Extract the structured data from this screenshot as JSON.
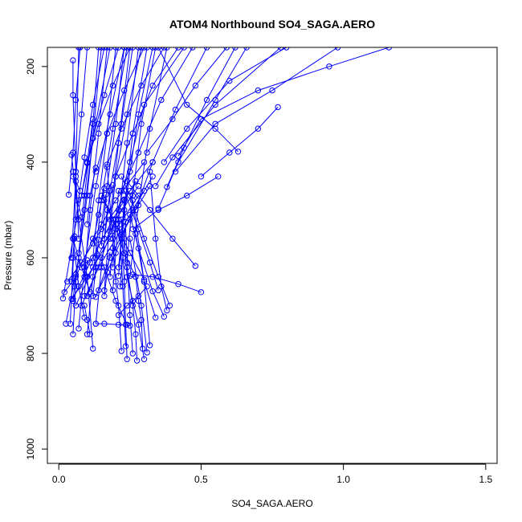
{
  "chart_data": {
    "type": "line",
    "title": "ATOM4 Northbound SO4_SAGA.AERO",
    "xlabel": "SO4_SAGA.AERO",
    "ylabel": "Pressure (mbar)",
    "xlim": [
      -0.04,
      1.54
    ],
    "ylim": [
      1030,
      160
    ],
    "y_inverted": true,
    "x_ticks": [
      {
        "value": 0.0,
        "label": "0.0"
      },
      {
        "value": 0.5,
        "label": "0.5"
      },
      {
        "value": 1.0,
        "label": "1.0"
      },
      {
        "value": 1.5,
        "label": "1.5"
      }
    ],
    "y_ticks": [
      {
        "value": 200,
        "label": "200"
      },
      {
        "value": 400,
        "label": "400"
      },
      {
        "value": 600,
        "label": "600"
      },
      {
        "value": 800,
        "label": "800"
      },
      {
        "value": 1000,
        "label": "1000"
      }
    ],
    "series_color": "#0000ff",
    "marker": "open-circle",
    "grid": false,
    "legend": "none",
    "series": [
      {
        "x": [
          0.05,
          0.05,
          0.06,
          0.07
        ],
        "y": [
          187,
          260,
          420,
          560
        ]
      },
      {
        "x": [
          0.44,
          0.3,
          0.25,
          0.2,
          0.15,
          0.1
        ],
        "y": [
          160,
          280,
          400,
          520,
          600,
          680
        ]
      },
      {
        "x": [
          0.015,
          0.05,
          0.08,
          0.1,
          0.12
        ],
        "y": [
          685,
          560,
          470,
          400,
          310
        ]
      },
      {
        "x": [
          0.025,
          0.07,
          0.1,
          0.15
        ],
        "y": [
          738,
          600,
          470,
          160
        ]
      },
      {
        "x": [
          0.12,
          0.1,
          0.07,
          0.045
        ],
        "y": [
          790,
          640,
          520,
          385
        ]
      },
      {
        "x": [
          0.22,
          0.21,
          0.2,
          0.19,
          0.17
        ],
        "y": [
          795,
          700,
          650,
          560,
          410
        ]
      },
      {
        "x": [
          0.3,
          0.28,
          0.26,
          0.24,
          0.23
        ],
        "y": [
          812,
          740,
          690,
          640,
          560
        ]
      },
      {
        "x": [
          0.24,
          0.235,
          0.23,
          0.22
        ],
        "y": [
          812,
          740,
          650,
          520
        ]
      },
      {
        "x": [
          0.275,
          0.27,
          0.26,
          0.24
        ],
        "y": [
          815,
          760,
          700,
          620
        ]
      },
      {
        "x": [
          0.295,
          0.29,
          0.28,
          0.27
        ],
        "y": [
          790,
          730,
          690,
          640
        ]
      },
      {
        "x": [
          0.32,
          0.3,
          0.27
        ],
        "y": [
          783,
          650,
          550
        ]
      },
      {
        "x": [
          0.31,
          0.29,
          0.25
        ],
        "y": [
          798,
          700,
          560
        ]
      },
      {
        "x": [
          0.26,
          0.25,
          0.23
        ],
        "y": [
          800,
          720,
          480
        ]
      },
      {
        "x": [
          0.235,
          0.225,
          0.21
        ],
        "y": [
          785,
          660,
          500
        ]
      },
      {
        "x": [
          0.38,
          0.36,
          0.34,
          0.32
        ],
        "y": [
          710,
          660,
          560,
          420
        ]
      },
      {
        "x": [
          0.39,
          0.35,
          0.3,
          0.25,
          0.22
        ],
        "y": [
          700,
          640,
          560,
          470,
          430
        ]
      },
      {
        "x": [
          0.37,
          0.33,
          0.28,
          0.25
        ],
        "y": [
          723,
          670,
          580,
          510
        ]
      },
      {
        "x": [
          0.34,
          0.3,
          0.26
        ],
        "y": [
          725,
          650,
          480
        ]
      },
      {
        "x": [
          0.35,
          0.32,
          0.28,
          0.23
        ],
        "y": [
          668,
          610,
          540,
          460
        ]
      },
      {
        "x": [
          0.5,
          0.42,
          0.33,
          0.26
        ],
        "y": [
          672,
          655,
          640,
          635
        ]
      },
      {
        "x": [
          0.48,
          0.4,
          0.32,
          0.24
        ],
        "y": [
          617,
          560,
          500,
          440
        ]
      },
      {
        "x": [
          0.56,
          0.45,
          0.35,
          0.26
        ],
        "y": [
          430,
          470,
          500,
          540
        ]
      },
      {
        "x": [
          0.63,
          0.55,
          0.45,
          0.35
        ],
        "y": [
          378,
          330,
          280,
          160
        ]
      },
      {
        "x": [
          0.77,
          0.7,
          0.6,
          0.5
        ],
        "y": [
          285,
          330,
          380,
          430
        ]
      },
      {
        "x": [
          0.42,
          0.5,
          0.7,
          0.95,
          1.16
        ],
        "y": [
          387,
          310,
          250,
          200,
          160
        ]
      },
      {
        "x": [
          0.41,
          0.55,
          0.75,
          0.98
        ],
        "y": [
          420,
          320,
          250,
          160
        ]
      },
      {
        "x": [
          0.37,
          0.45,
          0.6,
          0.8
        ],
        "y": [
          400,
          330,
          230,
          160
        ]
      },
      {
        "x": [
          0.34,
          0.4,
          0.55,
          0.78
        ],
        "y": [
          450,
          390,
          280,
          160
        ]
      },
      {
        "x": [
          0.35,
          0.42,
          0.55,
          0.66
        ],
        "y": [
          497,
          400,
          270,
          160
        ]
      },
      {
        "x": [
          0.38,
          0.44,
          0.52,
          0.62
        ],
        "y": [
          452,
          370,
          270,
          160
        ]
      },
      {
        "x": [
          0.31,
          0.4,
          0.48,
          0.59
        ],
        "y": [
          380,
          310,
          240,
          160
        ]
      },
      {
        "x": [
          0.27,
          0.33,
          0.41,
          0.52
        ],
        "y": [
          500,
          400,
          290,
          160
        ]
      },
      {
        "x": [
          0.22,
          0.28,
          0.36,
          0.47
        ],
        "y": [
          460,
          380,
          270,
          160
        ]
      },
      {
        "x": [
          0.2,
          0.26,
          0.33,
          0.42
        ],
        "y": [
          430,
          340,
          240,
          160
        ]
      },
      {
        "x": [
          0.17,
          0.22,
          0.29,
          0.37
        ],
        "y": [
          405,
          330,
          240,
          160
        ]
      },
      {
        "x": [
          0.13,
          0.17,
          0.23,
          0.3
        ],
        "y": [
          420,
          340,
          250,
          160
        ]
      },
      {
        "x": [
          0.1,
          0.14,
          0.19,
          0.25
        ],
        "y": [
          402,
          320,
          240,
          160
        ]
      },
      {
        "x": [
          0.08,
          0.12,
          0.16,
          0.21
        ],
        "y": [
          470,
          350,
          260,
          160
        ]
      },
      {
        "x": [
          0.06,
          0.09,
          0.12,
          0.16
        ],
        "y": [
          520,
          390,
          280,
          160
        ]
      },
      {
        "x": [
          0.045,
          0.06,
          0.08,
          0.1
        ],
        "y": [
          600,
          430,
          300,
          160
        ]
      },
      {
        "x": [
          0.035,
          0.05,
          0.06,
          0.075
        ],
        "y": [
          468,
          380,
          270,
          160
        ]
      },
      {
        "x": [
          0.04,
          0.055,
          0.07
        ],
        "y": [
          738,
          560,
          160
        ]
      },
      {
        "x": [
          0.05,
          0.06,
          0.09,
          0.12,
          0.18
        ],
        "y": [
          760,
          650,
          500,
          350,
          160
        ]
      },
      {
        "x": [
          0.07,
          0.09,
          0.13,
          0.18,
          0.23
        ],
        "y": [
          748,
          620,
          450,
          300,
          160
        ]
      },
      {
        "x": [
          0.1,
          0.12,
          0.15,
          0.19,
          0.24
        ],
        "y": [
          760,
          640,
          480,
          330,
          160
        ]
      },
      {
        "x": [
          0.13,
          0.15,
          0.18,
          0.22,
          0.26
        ],
        "y": [
          738,
          620,
          460,
          320,
          160
        ]
      },
      {
        "x": [
          0.16,
          0.18,
          0.21,
          0.25
        ],
        "y": [
          668,
          520,
          360,
          160
        ]
      },
      {
        "x": [
          0.19,
          0.21,
          0.24,
          0.28
        ],
        "y": [
          668,
          520,
          360,
          160
        ]
      },
      {
        "x": [
          0.21,
          0.23,
          0.26,
          0.31
        ],
        "y": [
          638,
          500,
          340,
          160
        ]
      },
      {
        "x": [
          0.24,
          0.26,
          0.29,
          0.34
        ],
        "y": [
          610,
          470,
          320,
          160
        ]
      },
      {
        "x": [
          0.25,
          0.28,
          0.32,
          0.38
        ],
        "y": [
          638,
          490,
          330,
          160
        ]
      },
      {
        "x": [
          0.22,
          0.25,
          0.28,
          0.33
        ],
        "y": [
          552,
          420,
          300,
          160
        ]
      },
      {
        "x": [
          0.18,
          0.2,
          0.24,
          0.29
        ],
        "y": [
          545,
          430,
          300,
          160
        ]
      },
      {
        "x": [
          0.15,
          0.17,
          0.2,
          0.23
        ],
        "y": [
          575,
          450,
          320,
          160
        ]
      },
      {
        "x": [
          0.12,
          0.14,
          0.17,
          0.2
        ],
        "y": [
          600,
          480,
          340,
          160
        ]
      },
      {
        "x": [
          0.09,
          0.11,
          0.14,
          0.17
        ],
        "y": [
          640,
          500,
          340,
          160
        ]
      },
      {
        "x": [
          0.07,
          0.09,
          0.12,
          0.14
        ],
        "y": [
          590,
          470,
          320,
          160
        ]
      },
      {
        "x": [
          0.02,
          0.06,
          0.12,
          0.2,
          0.3
        ],
        "y": [
          672,
          640,
          560,
          480,
          400
        ]
      },
      {
        "x": [
          0.03,
          0.08,
          0.15,
          0.25,
          0.33
        ],
        "y": [
          650,
          610,
          540,
          460,
          400
        ]
      },
      {
        "x": [
          0.045,
          0.1,
          0.18,
          0.28
        ],
        "y": [
          686,
          640,
          560,
          470
        ]
      },
      {
        "x": [
          0.05,
          0.11,
          0.19,
          0.27
        ],
        "y": [
          686,
          610,
          520,
          440
        ]
      },
      {
        "x": [
          0.06,
          0.12,
          0.2,
          0.28
        ],
        "y": [
          700,
          620,
          520,
          450
        ]
      },
      {
        "x": [
          0.08,
          0.14,
          0.22,
          0.3
        ],
        "y": [
          700,
          620,
          540,
          460
        ]
      },
      {
        "x": [
          0.13,
          0.18,
          0.25,
          0.32
        ],
        "y": [
          682,
          600,
          520,
          450
        ]
      },
      {
        "x": [
          0.14,
          0.2,
          0.26,
          0.33
        ],
        "y": [
          668,
          590,
          500,
          430
        ]
      },
      {
        "x": [
          0.27,
          0.23,
          0.19,
          0.15
        ],
        "y": [
          640,
          590,
          520,
          470
        ]
      },
      {
        "x": [
          0.3,
          0.25,
          0.2,
          0.16
        ],
        "y": [
          646,
          590,
          530,
          480
        ]
      },
      {
        "x": [
          0.24,
          0.2,
          0.16,
          0.12
        ],
        "y": [
          740,
          690,
          620,
          560
        ]
      },
      {
        "x": [
          0.13,
          0.16,
          0.21,
          0.25
        ],
        "y": [
          738,
          738,
          740,
          742
        ]
      },
      {
        "x": [
          0.21,
          0.24,
          0.28,
          0.31
        ],
        "y": [
          720,
          700,
          680,
          660
        ]
      },
      {
        "x": [
          0.11,
          0.08,
          0.05
        ],
        "y": [
          672,
          620,
          560
        ]
      },
      {
        "x": [
          0.09,
          0.07,
          0.05
        ],
        "y": [
          725,
          660,
          560
        ]
      },
      {
        "x": [
          0.08,
          0.065,
          0.05
        ],
        "y": [
          515,
          480,
          420
        ]
      },
      {
        "x": [
          0.075,
          0.06,
          0.05
        ],
        "y": [
          460,
          440,
          430
        ]
      },
      {
        "x": [
          0.13,
          0.11,
          0.1
        ],
        "y": [
          412,
          470,
          530
        ]
      },
      {
        "x": [
          0.16,
          0.14,
          0.12
        ],
        "y": [
          455,
          510,
          570
        ]
      },
      {
        "x": [
          0.165,
          0.15,
          0.13
        ],
        "y": [
          468,
          530,
          600
        ]
      },
      {
        "x": [
          0.19,
          0.17,
          0.16
        ],
        "y": [
          448,
          500,
          560
        ]
      },
      {
        "x": [
          0.2,
          0.19,
          0.18
        ],
        "y": [
          520,
          580,
          640
        ]
      },
      {
        "x": [
          0.21,
          0.2,
          0.19
        ],
        "y": [
          460,
          540,
          620
        ]
      },
      {
        "x": [
          0.23,
          0.22,
          0.21
        ],
        "y": [
          478,
          560,
          620
        ]
      },
      {
        "x": [
          0.235,
          0.225,
          0.215
        ],
        "y": [
          525,
          600,
          660
        ]
      },
      {
        "x": [
          0.18,
          0.17,
          0.16
        ],
        "y": [
          588,
          630,
          680
        ]
      },
      {
        "x": [
          0.14,
          0.13,
          0.12
        ],
        "y": [
          562,
          620,
          680
        ]
      },
      {
        "x": [
          0.1,
          0.095,
          0.09
        ],
        "y": [
          605,
          640,
          680
        ]
      },
      {
        "x": [
          0.06,
          0.055,
          0.05
        ],
        "y": [
          635,
          660,
          690
        ]
      },
      {
        "x": [
          0.055,
          0.05,
          0.045
        ],
        "y": [
          555,
          600,
          650
        ]
      },
      {
        "x": [
          0.11,
          0.1,
          0.09
        ],
        "y": [
          760,
          730,
          700
        ]
      }
    ]
  }
}
